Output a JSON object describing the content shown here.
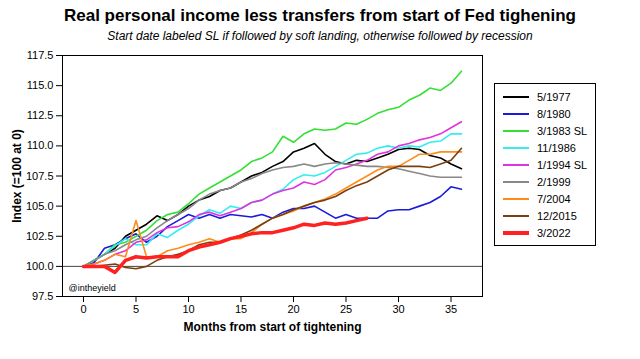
{
  "chart_data": {
    "type": "line",
    "title": "Real personal income less transfers from start of Fed tighening",
    "subtitle": "Start date labeled SL if followed by soft landing, otherwise followed by recession",
    "x_label": "Months from start of tightening",
    "y_label": "Index (=100 at 0)",
    "annotation": "@intheyield",
    "baseline": 100,
    "legend": "right",
    "grid": false,
    "xlim": [
      -2,
      38
    ],
    "xticks": [
      0,
      5,
      10,
      15,
      20,
      25,
      30,
      35
    ],
    "ylim": [
      97.5,
      117.5
    ],
    "yticks": [
      97.5,
      {
        "value": 100,
        "label": "100.0"
      },
      102.5,
      {
        "value": 105,
        "label": "105.0"
      },
      107.5,
      {
        "value": 110,
        "label": "110.0"
      },
      112.5,
      {
        "value": 115,
        "label": "115.0"
      },
      117.5
    ],
    "x": [
      0,
      1,
      2,
      3,
      4,
      5,
      6,
      7,
      8,
      9,
      10,
      11,
      12,
      13,
      14,
      15,
      16,
      17,
      18,
      19,
      20,
      21,
      22,
      23,
      24,
      25,
      26,
      27,
      28,
      29,
      30,
      31,
      32,
      33,
      34,
      35,
      36
    ],
    "series": [
      {
        "name": "5/1977",
        "color": "#000000",
        "values": [
          100,
          100.5,
          101,
          101.5,
          102.5,
          103,
          103.5,
          104.2,
          103.8,
          104.3,
          105,
          105.5,
          105.8,
          106.3,
          106.5,
          107,
          107.5,
          107.8,
          108.3,
          108.7,
          109.5,
          109.8,
          110.2,
          109.3,
          108.7,
          108.5,
          108.8,
          108.7,
          109,
          109.3,
          109.7,
          109.8,
          109.7,
          109.2,
          109,
          108.5,
          108.1
        ]
      },
      {
        "name": "8/1980",
        "color": "#1a1adc",
        "values": [
          100,
          100.3,
          101.5,
          101.8,
          102.3,
          102.7,
          102,
          102.5,
          103.3,
          103.8,
          104.3,
          104,
          104.3,
          104,
          104.3,
          104.2,
          104.1,
          104.3,
          104,
          104.5,
          104.8,
          104.8,
          105,
          104.5,
          104,
          104.3,
          104,
          104,
          104,
          104.6,
          104.7,
          104.7,
          105,
          105.3,
          105.8,
          106.6,
          106.4
        ]
      },
      {
        "name": "3/1983 SL",
        "color": "#33e033",
        "values": [
          100,
          100.5,
          101,
          101.8,
          102,
          102.5,
          103,
          103.8,
          104.3,
          104.5,
          105.2,
          106,
          106.5,
          107,
          107.5,
          108,
          108.7,
          109,
          109.5,
          110.8,
          110.3,
          111,
          111.4,
          111.3,
          111.4,
          111.9,
          111.8,
          112.2,
          112.7,
          113,
          113.2,
          113.8,
          114.2,
          114.8,
          114.6,
          115.2,
          116.2
        ]
      },
      {
        "name": "11/1986",
        "color": "#33eef0",
        "values": [
          100,
          100.5,
          101,
          101.7,
          102.3,
          101.8,
          101.8,
          102.7,
          102.4,
          103,
          103.5,
          104.2,
          104.7,
          104.4,
          105,
          104.8,
          105.3,
          105.5,
          106,
          106.4,
          107.2,
          107.6,
          107.5,
          107.8,
          108.3,
          108.8,
          109.3,
          109.4,
          109.8,
          110,
          109.8,
          110,
          109.9,
          110.3,
          110.4,
          111,
          111
        ]
      },
      {
        "name": "1/1994 SL",
        "color": "#e033e0",
        "values": [
          100,
          100.2,
          100.5,
          101,
          101.3,
          102,
          102.2,
          102.8,
          103.2,
          103.3,
          103.7,
          104.3,
          104.5,
          104.2,
          104.5,
          104.8,
          105.3,
          105.5,
          106,
          106.3,
          106.5,
          107,
          106.8,
          107.2,
          108,
          108.2,
          108.5,
          108.8,
          109.3,
          109.5,
          110,
          110.2,
          110.5,
          110.7,
          111,
          111.5,
          112
        ]
      },
      {
        "name": "2/1999",
        "color": "#888888",
        "values": [
          100,
          100.5,
          101,
          101.3,
          101.8,
          102.2,
          102.5,
          103.2,
          103.8,
          104.3,
          104.8,
          105.5,
          106,
          106.3,
          106.5,
          107,
          107.3,
          107.7,
          108,
          108.2,
          108.3,
          108.5,
          108.3,
          108.5,
          108.6,
          108.5,
          108.4,
          108.3,
          108.3,
          108.2,
          108.1,
          107.9,
          107.7,
          107.5,
          107.4,
          107.4,
          107.4
        ]
      },
      {
        "name": "7/2004",
        "color": "#ff8c1a",
        "values": [
          100,
          100.2,
          100.5,
          101,
          100.8,
          103.8,
          100.8,
          100.8,
          101.3,
          101.5,
          101.8,
          102,
          102.3,
          102,
          102.3,
          102.3,
          102.8,
          103.5,
          104,
          104.3,
          104.6,
          105,
          105.3,
          105.6,
          106,
          106.5,
          107,
          107.5,
          108,
          108.3,
          108.3,
          108.8,
          109.3,
          109.3,
          109.5,
          109.5,
          109.5
        ]
      },
      {
        "name": "12/2015",
        "color": "#7a3f0f",
        "values": [
          100,
          100,
          100.1,
          100.2,
          99.9,
          99.8,
          100,
          100.5,
          100.8,
          101,
          101.3,
          101.8,
          102,
          102,
          102.3,
          102.6,
          103,
          103.5,
          104,
          104.3,
          104.7,
          105,
          105.3,
          105.5,
          105.8,
          106.3,
          106.7,
          107,
          107.5,
          108,
          108.3,
          108.3,
          108.3,
          108.2,
          108.5,
          108.8,
          109.8
        ]
      },
      {
        "name": "3/2022",
        "color": "#ff2020",
        "values": [
          100,
          100,
          100,
          99.5,
          100.5,
          100.8,
          100.7,
          100.8,
          100.8,
          100.8,
          101.3,
          101.6,
          101.8,
          102,
          102.3,
          102.5,
          102.7,
          102.8,
          102.8,
          103,
          103.2,
          103.5,
          103.4,
          103.6,
          103.5,
          103.6,
          103.8,
          104,
          null,
          null,
          null,
          null,
          null,
          null,
          null,
          null,
          null
        ]
      }
    ]
  }
}
